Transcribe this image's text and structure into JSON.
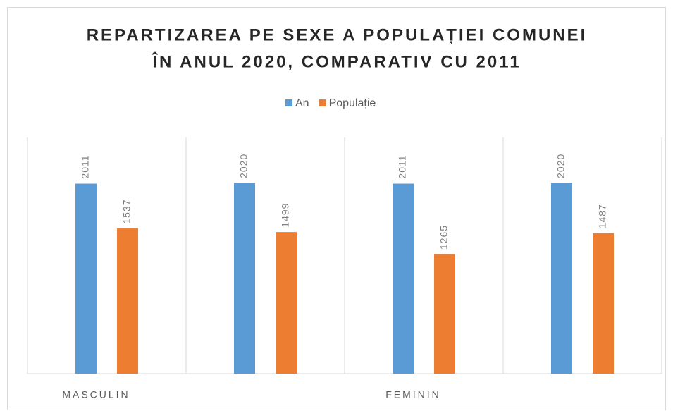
{
  "chart_data": {
    "type": "bar",
    "title": "REPARTIZAREA PE SEXE A POPULAȚIEI COMUNEI",
    "subtitle": "ÎN ANUL 2020, COMPARATIV CU 2011",
    "categories": [
      "MASCULIN",
      null,
      "FEMININ",
      null
    ],
    "series": [
      {
        "name": "An",
        "color": "#5b9bd5",
        "values": [
          2011,
          2020,
          2011,
          2020
        ]
      },
      {
        "name": "Populație",
        "color": "#ed7d31",
        "values": [
          1537,
          1499,
          1265,
          1487
        ]
      }
    ],
    "ylim": [
      0,
      2500
    ]
  }
}
